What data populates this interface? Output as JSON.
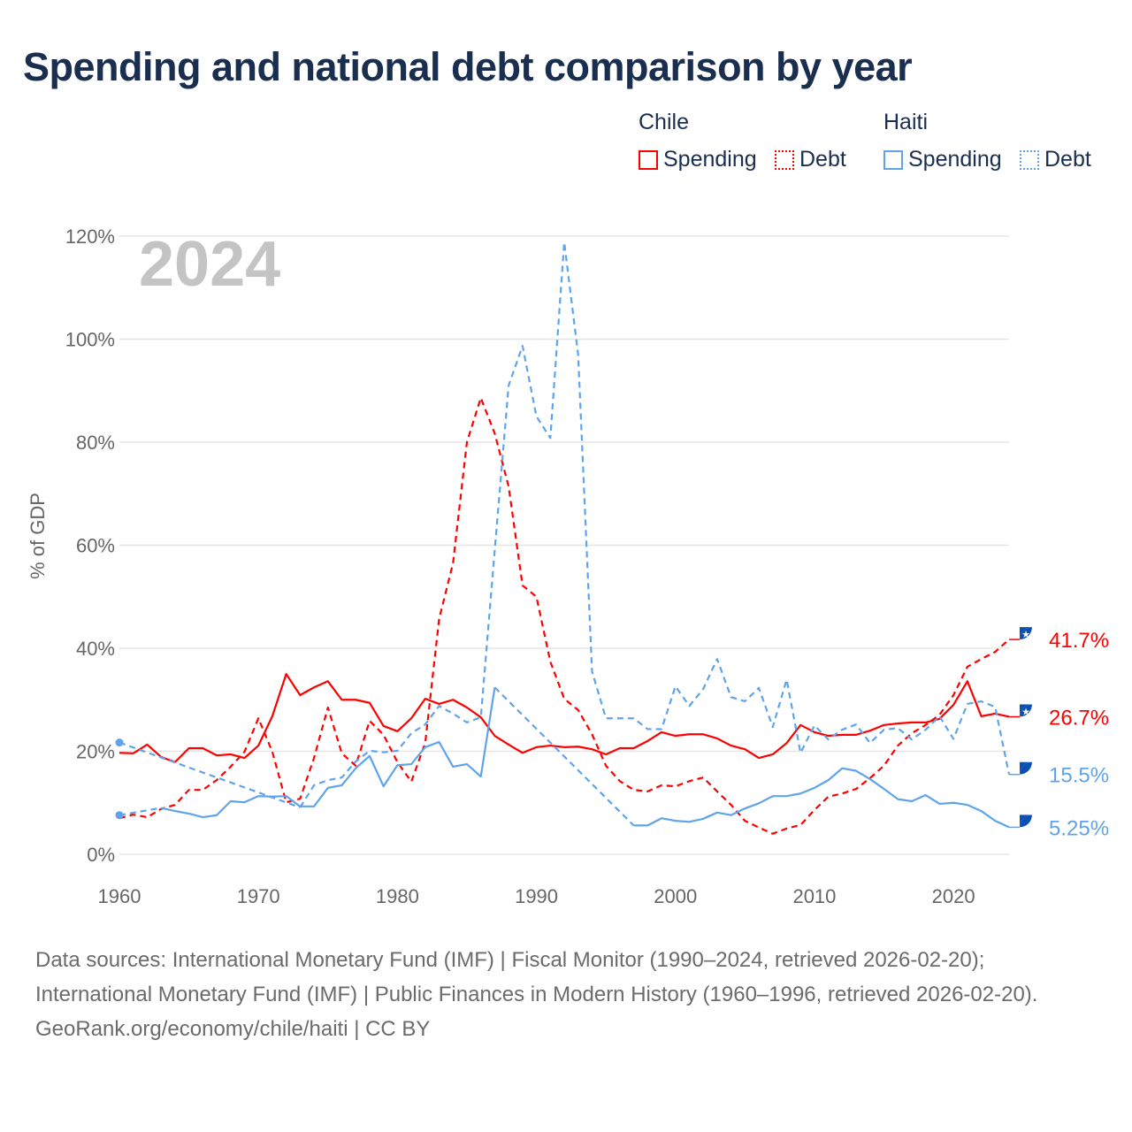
{
  "title": "Spending and national debt comparison by year",
  "legend": {
    "groups": [
      {
        "country": "Chile",
        "items": [
          {
            "label": "Spending",
            "style": "solid"
          },
          {
            "label": "Debt",
            "style": "dotted"
          }
        ],
        "color": "#ff0000"
      },
      {
        "country": "Haiti",
        "items": [
          {
            "label": "Spending",
            "style": "solid"
          },
          {
            "label": "Debt",
            "style": "dotted"
          }
        ],
        "color": "#5fa4ea"
      }
    ]
  },
  "year_label": "2024",
  "footer": {
    "sources": "Data sources: International Monetary Fund (IMF) | Fiscal Monitor (1990–2024, retrieved 2026-02-20); International Monetary Fund (IMF) | Public Finances in Modern History (1960–1996, retrieved 2026-02-20).",
    "credit": "GeoRank.org/economy/chile/haiti | CC BY"
  },
  "chart_data": {
    "type": "line",
    "title": "Spending and national debt comparison by year",
    "xlabel": "",
    "ylabel": "% of GDP",
    "xlim": [
      1960,
      2024
    ],
    "ylim": [
      0,
      120
    ],
    "xticks": [
      1960,
      1970,
      1980,
      1990,
      2000,
      2010,
      2020
    ],
    "yticks": [
      0,
      20,
      40,
      60,
      80,
      100,
      120
    ],
    "ytick_labels": [
      "0%",
      "20%",
      "40%",
      "60%",
      "80%",
      "100%",
      "120%"
    ],
    "grid": true,
    "legend_position": "top-right",
    "x_start": 1960,
    "series": [
      {
        "name": "Chile Spending",
        "country": "Chile",
        "color": "#ff0000",
        "dashed": false,
        "flag": "chile",
        "end_label": "26.7%",
        "values": [
          19.7,
          19.6,
          21.3,
          18.9,
          17.9,
          20.6,
          20.6,
          19.2,
          19.4,
          18.7,
          21.1,
          26.8,
          35.0,
          30.9,
          32.4,
          33.6,
          30.0,
          30.0,
          29.4,
          24.9,
          23.9,
          26.4,
          30.2,
          29.2,
          30.0,
          28.5,
          26.6,
          23.0,
          21.3,
          19.7,
          20.8,
          21.1,
          20.8,
          20.9,
          20.4,
          19.4,
          20.6,
          20.6,
          22.0,
          23.7,
          23.0,
          23.3,
          23.3,
          22.5,
          21.1,
          20.4,
          18.7,
          19.4,
          21.6,
          25.1,
          23.7,
          23.0,
          23.2,
          23.2,
          24.0,
          25.1,
          25.4,
          25.6,
          25.6,
          26.3,
          29.0,
          33.6,
          26.8,
          27.3,
          26.7
        ]
      },
      {
        "name": "Chile Debt",
        "country": "Chile",
        "color": "#ff0000",
        "dashed": true,
        "flag": "chile",
        "end_label": "41.7%",
        "values": [
          7.0,
          7.7,
          7.2,
          8.8,
          9.6,
          12.5,
          12.5,
          14.4,
          17.0,
          19.9,
          26.4,
          19.9,
          10.1,
          10.8,
          18.7,
          28.5,
          19.6,
          17.2,
          25.9,
          23.2,
          17.9,
          14.1,
          21.6,
          45.7,
          56.5,
          80.0,
          88.6,
          81.7,
          71.4,
          52.2,
          50.0,
          37.4,
          30.2,
          28.0,
          23.3,
          17.2,
          14.2,
          12.5,
          12.2,
          13.4,
          13.2,
          14.2,
          14.9,
          12.2,
          9.6,
          6.5,
          5.2,
          4.0,
          5.0,
          5.7,
          8.6,
          11.2,
          11.8,
          12.7,
          14.8,
          17.2,
          21.1,
          23.5,
          25.1,
          27.1,
          30.9,
          36.4,
          37.9,
          39.3,
          41.7
        ]
      },
      {
        "name": "Haiti Debt",
        "country": "Haiti",
        "color": "#5fa4ea",
        "dashed": true,
        "flag": "haiti",
        "end_label": "15.5%",
        "values": [
          21.7,
          null,
          null,
          null,
          null,
          null,
          null,
          null,
          null,
          null,
          null,
          null,
          null,
          9.1,
          13.4,
          14.4,
          14.9,
          18.0,
          20.1,
          19.8,
          20.1,
          23.5,
          25.2,
          28.8,
          27.3,
          25.6,
          26.6,
          59.0,
          91.0,
          98.7,
          85.0,
          80.8,
          118.8,
          97.0,
          35.5,
          26.4,
          26.4,
          26.4,
          24.3,
          24.3,
          32.6,
          28.8,
          32.1,
          37.9,
          30.5,
          29.7,
          32.3,
          24.7,
          33.9,
          19.7,
          25.0,
          22.3,
          24.2,
          25.2,
          21.6,
          24.2,
          24.5,
          22.3,
          24.2,
          26.8,
          22.4,
          29.2,
          29.7,
          28.6,
          15.5
        ]
      },
      {
        "name": "Haiti Spending",
        "country": "Haiti",
        "color": "#5fa4ea",
        "dashed": false,
        "flag": "haiti",
        "end_label": "5.25%",
        "values": [
          7.6,
          null,
          null,
          9.0,
          8.4,
          7.9,
          7.2,
          7.6,
          10.3,
          10.1,
          11.3,
          11.2,
          11.3,
          9.3,
          9.3,
          12.9,
          13.4,
          16.7,
          19.1,
          13.2,
          17.3,
          17.5,
          20.8,
          21.8,
          17.0,
          17.5,
          15.1,
          32.4,
          null,
          null,
          null,
          null,
          null,
          null,
          null,
          null,
          null,
          5.6,
          5.6,
          7.0,
          6.5,
          6.3,
          6.9,
          8.1,
          7.6,
          8.9,
          9.9,
          11.3,
          11.3,
          11.8,
          12.9,
          14.4,
          16.7,
          16.2,
          14.6,
          12.7,
          10.7,
          10.3,
          11.5,
          9.8,
          10.0,
          9.6,
          8.4,
          6.5,
          5.25
        ]
      }
    ]
  }
}
